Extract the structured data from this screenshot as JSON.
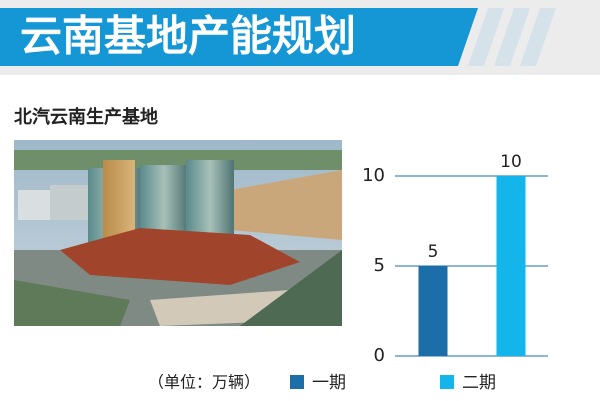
{
  "header": {
    "title": "云南基地产能规划"
  },
  "subtitle": "北汽云南生产基地",
  "chart_data": {
    "type": "bar",
    "note": "（单位：万辆）",
    "categories": [
      "一期",
      "二期"
    ],
    "values": [
      5,
      10
    ],
    "colors": [
      "#1b6ea8",
      "#13b5ea"
    ],
    "ylim": [
      0,
      10
    ],
    "yticks": [
      0,
      5,
      10
    ],
    "grid": true
  }
}
